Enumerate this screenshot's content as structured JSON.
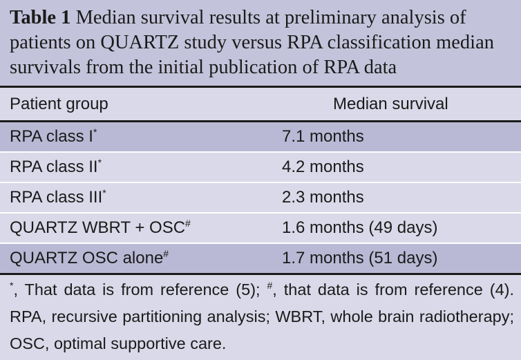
{
  "caption": {
    "label": "Table 1",
    "text": "Median survival results at preliminary analysis of patients on QUARTZ study versus RPA classification median survivals from the initial publication of RPA data"
  },
  "header": {
    "col1": "Patient group",
    "col2": "Median survival"
  },
  "rows": [
    {
      "group": "RPA class I",
      "mark": "*",
      "survival": "7.1 months"
    },
    {
      "group": "RPA class II",
      "mark": "*",
      "survival": "4.2 months"
    },
    {
      "group": "RPA class III",
      "mark": "*",
      "survival": "2.3 months"
    },
    {
      "group": "QUARTZ WBRT + OSC",
      "mark": "#",
      "survival": "1.6 months (49 days)"
    },
    {
      "group": "QUARTZ OSC alone",
      "mark": "#",
      "survival": "1.7 months (51 days)"
    }
  ],
  "footnote": {
    "m1": "*",
    "t1": ", That data is from reference (5); ",
    "m2": "#",
    "t2": ", that data is from reference (4). RPA, recursive partitioning analysis; WBRT, whole brain radiotherapy; OSC, optimal supportive care."
  }
}
